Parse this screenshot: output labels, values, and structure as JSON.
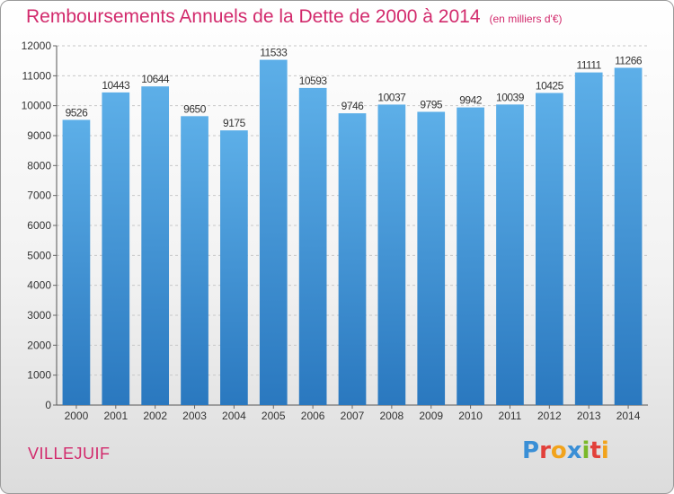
{
  "header": {
    "title": "Remboursements Annuels de la Dette de 2000 à 2014",
    "subtitle": "(en milliers d'€)"
  },
  "footer": {
    "city": "VILLEJUIF",
    "logo": "Proxiti"
  },
  "colors": {
    "title": "#d22a6c",
    "bar_top": "#5dafe8",
    "bar_bottom": "#2a78bf"
  },
  "chart_data": {
    "type": "bar",
    "title": "Remboursements Annuels de la Dette de 2000 à 2014",
    "subtitle": "(en milliers d'€)",
    "xlabel": "",
    "ylabel": "",
    "categories": [
      "2000",
      "2001",
      "2002",
      "2003",
      "2004",
      "2005",
      "2006",
      "2007",
      "2008",
      "2009",
      "2010",
      "2011",
      "2012",
      "2013",
      "2014"
    ],
    "values": [
      9526,
      10443,
      10644,
      9650,
      9175,
      11533,
      10593,
      9746,
      10037,
      9795,
      9942,
      10039,
      10425,
      11111,
      11266
    ],
    "ylim": [
      0,
      12000
    ],
    "yticks": [
      0,
      1000,
      2000,
      3000,
      4000,
      5000,
      6000,
      7000,
      8000,
      9000,
      10000,
      11000,
      12000
    ],
    "grid": true,
    "data_labels": true
  }
}
